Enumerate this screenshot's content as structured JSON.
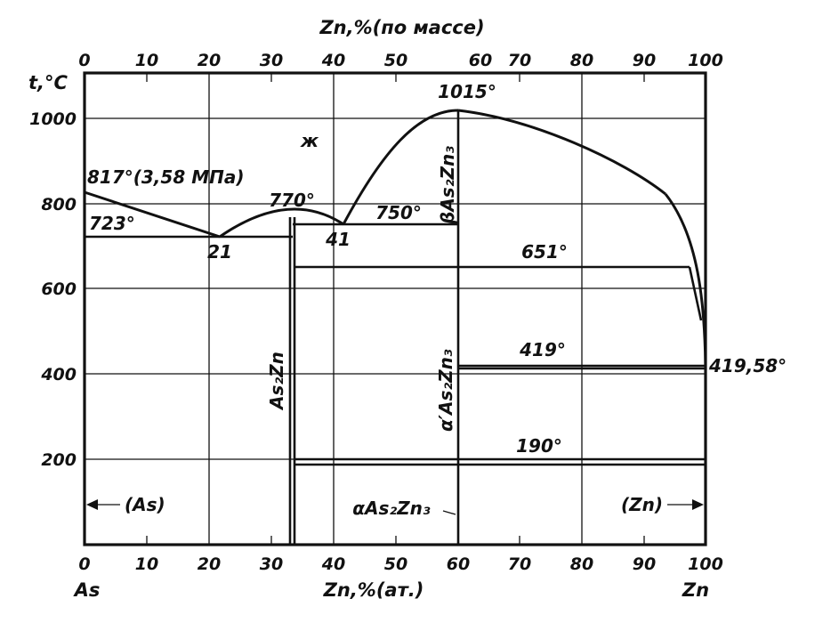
{
  "diagram": {
    "top_axis_title": "Zn,%(по массе)",
    "bottom_axis_title": "Zn,%(ат.)",
    "y_axis_title": "t,°C",
    "left_element": "As",
    "right_element": "Zn",
    "top_ticks": [
      "0",
      "10",
      "20",
      "30",
      "40",
      "50",
      "60",
      "70",
      "80",
      "90",
      "100"
    ],
    "bottom_ticks": [
      "0",
      "10",
      "20",
      "30",
      "40",
      "50",
      "60",
      "70",
      "80",
      "90",
      "100"
    ],
    "y_ticks": [
      "1000",
      "800",
      "600",
      "400",
      "200"
    ],
    "labels": {
      "liquid": "ж",
      "t817": "817°(3,58 МПа)",
      "t723": "723°",
      "t770": "770°",
      "c21": "21",
      "c41": "41",
      "t750": "750°",
      "t1015": "1015°",
      "beta_as2zn3": "βAs₂Zn₃",
      "t651": "651°",
      "as2zn": "As₂Zn",
      "alpha_prime_as2zn3": "α′As₂Zn₃",
      "t419": "419°",
      "t419_58": "419,58°",
      "t190": "190°",
      "as_phase": "(As)",
      "alpha_as2zn3": "αAs₂Zn₃",
      "zn_phase": "(Zn)"
    }
  }
}
